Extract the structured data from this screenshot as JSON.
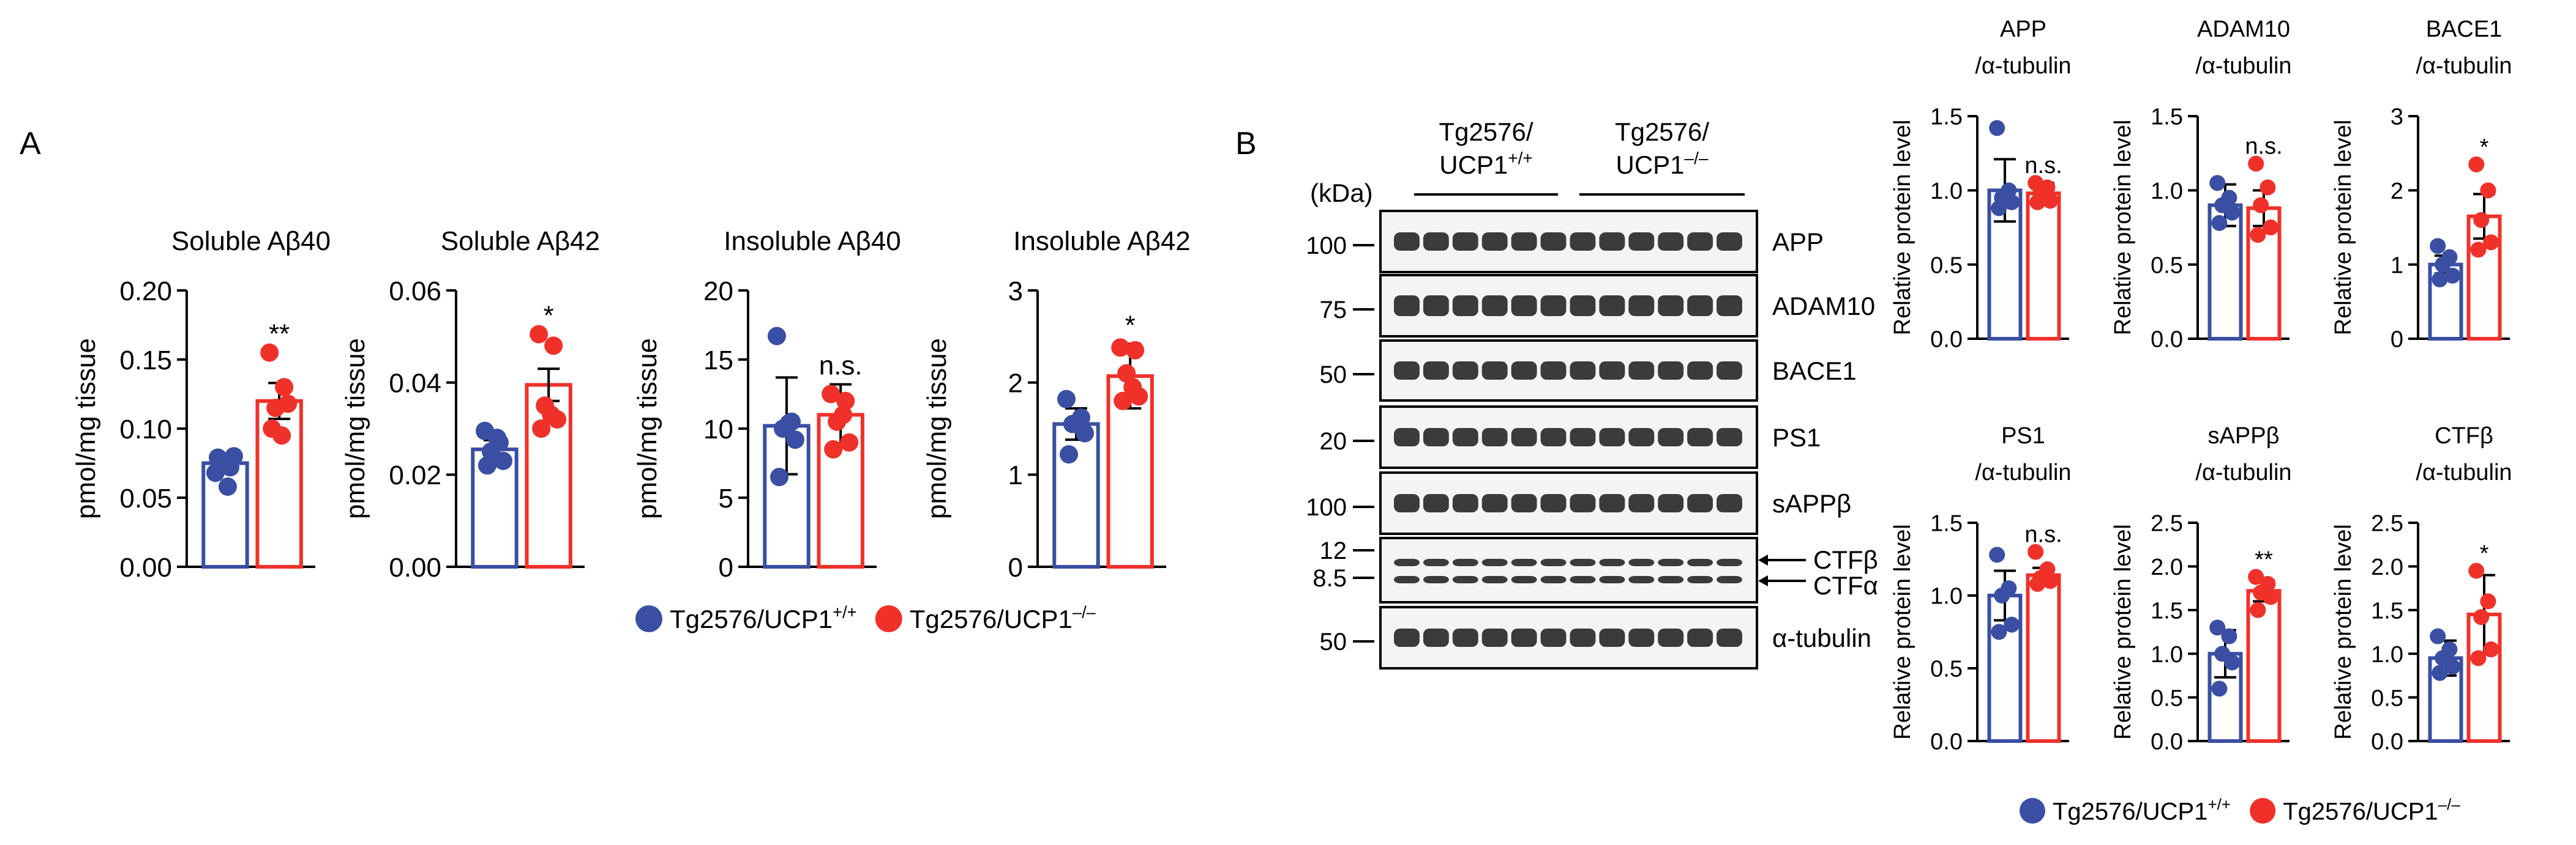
{
  "panel_labels": {
    "a": "A",
    "b": "B"
  },
  "colors": {
    "wt": "#3a4fa3",
    "ko": "#f0312a",
    "axis": "#000000"
  },
  "legend": {
    "wt_main": "Tg2576/UCP1",
    "wt_sup": "+/+",
    "ko_main": "Tg2576/UCP1",
    "ko_sup": "–/–"
  },
  "blot": {
    "kda_label": "(kDa)",
    "groups": [
      {
        "line1": "Tg2576/",
        "line2_main": "UCP1",
        "line2_sup": "+/+"
      },
      {
        "line1": "Tg2576/",
        "line2_main": "UCP1",
        "line2_sup": "–/–"
      }
    ],
    "rows": [
      {
        "marker": "100",
        "label": "APP"
      },
      {
        "marker": "75",
        "label": "ADAM10"
      },
      {
        "marker": "50",
        "label": "BACE1"
      },
      {
        "marker": "20",
        "label": "PS1"
      },
      {
        "marker": "100",
        "label": "sAPPβ"
      },
      {
        "marker": "12",
        "marker2": "8.5",
        "label": "CTFβ",
        "label2": "CTFα"
      },
      {
        "marker": "50",
        "label": "α-tubulin"
      }
    ]
  },
  "chart_data": [
    {
      "type": "bar",
      "title": "Soluble Aβ40",
      "ylabel": "pmol/mg tissue",
      "ylim": [
        0,
        0.2
      ],
      "yticks": [
        "0.00",
        "0.05",
        "0.10",
        "0.15",
        "0.20"
      ],
      "significance": "**",
      "series": [
        {
          "name": "Tg2576/UCP1+/+",
          "mean": 0.075,
          "err": 0.006,
          "points": [
            0.068,
            0.072,
            0.076,
            0.08,
            0.079,
            0.058
          ]
        },
        {
          "name": "Tg2576/UCP1–/–",
          "mean": 0.12,
          "err": 0.013,
          "points": [
            0.155,
            0.13,
            0.115,
            0.118,
            0.1,
            0.095
          ]
        }
      ]
    },
    {
      "type": "bar",
      "title": "Soluble Aβ42",
      "ylabel": "pmol/mg tissue",
      "ylim": [
        0,
        0.06
      ],
      "yticks": [
        "0.00",
        "0.02",
        "0.04",
        "0.06"
      ],
      "significance": "*",
      "series": [
        {
          "name": "Tg2576/UCP1+/+",
          "mean": 0.0255,
          "err": 0.002,
          "points": [
            0.0295,
            0.027,
            0.025,
            0.023,
            0.022,
            0.028
          ]
        },
        {
          "name": "Tg2576/UCP1–/–",
          "mean": 0.0395,
          "err": 0.0035,
          "points": [
            0.0505,
            0.048,
            0.035,
            0.032,
            0.03,
            0.033
          ]
        }
      ]
    },
    {
      "type": "bar",
      "title": "Insoluble Aβ40",
      "ylabel": "pmol/mg tissue",
      "ylim": [
        0,
        20
      ],
      "yticks": [
        "0",
        "5",
        "10",
        "15",
        "20"
      ],
      "significance": "n.s.",
      "series": [
        {
          "name": "Tg2576/UCP1+/+",
          "mean": 10.2,
          "err": 3.5,
          "points": [
            16.7,
            10.5,
            10.0,
            9.2,
            6.5,
            10.4
          ]
        },
        {
          "name": "Tg2576/UCP1–/–",
          "mean": 11.0,
          "err": 2.2,
          "points": [
            12.5,
            12.0,
            10.5,
            9.0,
            8.5,
            11.0
          ]
        }
      ]
    },
    {
      "type": "bar",
      "title": "Insoluble Aβ42",
      "ylabel": "pmol/mg tissue",
      "ylim": [
        0,
        3
      ],
      "yticks": [
        "0",
        "1",
        "2",
        "3"
      ],
      "significance": "*",
      "series": [
        {
          "name": "Tg2576/UCP1+/+",
          "mean": 1.55,
          "err": 0.17,
          "points": [
            1.82,
            1.62,
            1.55,
            1.45,
            1.22
          ]
        },
        {
          "name": "Tg2576/UCP1–/–",
          "mean": 2.07,
          "err": 0.35,
          "points": [
            2.38,
            2.35,
            2.1,
            1.85,
            1.8,
            1.95
          ]
        }
      ]
    },
    {
      "type": "bar",
      "title": "APP",
      "title2": "/α-tubulin",
      "ylabel": "Relative protein level",
      "ylim": [
        0,
        1.5
      ],
      "yticks": [
        "0.0",
        "0.5",
        "1.0",
        "1.5"
      ],
      "significance": "n.s.",
      "series": [
        {
          "name": "Tg2576/UCP1+/+",
          "mean": 1.0,
          "err": 0.21,
          "points": [
            1.42,
            1.0,
            0.95,
            0.92,
            0.88
          ]
        },
        {
          "name": "Tg2576/UCP1–/–",
          "mean": 0.98,
          "err": 0.07,
          "points": [
            1.05,
            1.02,
            0.98,
            0.93,
            0.92
          ]
        }
      ]
    },
    {
      "type": "bar",
      "title": "ADAM10",
      "title2": "/α-tubulin",
      "ylabel": "Relative protein level",
      "ylim": [
        0,
        1.5
      ],
      "yticks": [
        "0.0",
        "0.5",
        "1.0",
        "1.5"
      ],
      "significance": "n.s.",
      "series": [
        {
          "name": "Tg2576/UCP1+/+",
          "mean": 0.9,
          "err": 0.14,
          "points": [
            1.05,
            0.95,
            0.9,
            0.85,
            0.78
          ]
        },
        {
          "name": "Tg2576/UCP1–/–",
          "mean": 0.88,
          "err": 0.12,
          "points": [
            1.18,
            1.02,
            0.9,
            0.75,
            0.7
          ]
        }
      ]
    },
    {
      "type": "bar",
      "title": "BACE1",
      "title2": "/α-tubulin",
      "ylabel": "Relative protein level",
      "ylim": [
        0,
        3
      ],
      "yticks": [
        "0",
        "1",
        "2",
        "3"
      ],
      "significance": "*",
      "series": [
        {
          "name": "Tg2576/UCP1+/+",
          "mean": 1.0,
          "err": 0.12,
          "points": [
            1.25,
            1.1,
            1.0,
            0.85,
            0.8
          ]
        },
        {
          "name": "Tg2576/UCP1–/–",
          "mean": 1.65,
          "err": 0.3,
          "points": [
            2.35,
            2.0,
            1.6,
            1.3,
            1.2
          ]
        }
      ]
    },
    {
      "type": "bar",
      "title": "PS1",
      "title2": "/α-tubulin",
      "ylabel": "Relative protein level",
      "ylim": [
        0,
        1.5
      ],
      "yticks": [
        "0.0",
        "0.5",
        "1.0",
        "1.5"
      ],
      "significance": "n.s.",
      "series": [
        {
          "name": "Tg2576/UCP1+/+",
          "mean": 1.0,
          "err": 0.17,
          "points": [
            1.28,
            1.05,
            1.0,
            0.8,
            0.75
          ]
        },
        {
          "name": "Tg2576/UCP1–/–",
          "mean": 1.14,
          "err": 0.05,
          "points": [
            1.3,
            1.18,
            1.12,
            1.1,
            1.08
          ]
        }
      ]
    },
    {
      "type": "bar",
      "title": "sAPPβ",
      "title2": "/α-tubulin",
      "ylabel": "Relative protein level",
      "ylim": [
        0,
        2.5
      ],
      "yticks": [
        "0.0",
        "0.5",
        "1.0",
        "1.5",
        "2.0",
        "2.5"
      ],
      "significance": "**",
      "series": [
        {
          "name": "Tg2576/UCP1+/+",
          "mean": 1.0,
          "err": 0.27,
          "points": [
            1.3,
            1.2,
            1.0,
            0.9,
            0.6
          ]
        },
        {
          "name": "Tg2576/UCP1–/–",
          "mean": 1.72,
          "err": 0.12,
          "points": [
            1.88,
            1.8,
            1.7,
            1.65,
            1.5
          ]
        }
      ]
    },
    {
      "type": "bar",
      "title": "CTFβ",
      "title2": "/α-tubulin",
      "ylabel": "Relative protein level",
      "ylim": [
        0,
        2.5
      ],
      "yticks": [
        "0.0",
        "0.5",
        "1.0",
        "1.5",
        "2.0",
        "2.5"
      ],
      "significance": "*",
      "series": [
        {
          "name": "Tg2576/UCP1+/+",
          "mean": 0.95,
          "err": 0.2,
          "points": [
            1.2,
            1.05,
            0.95,
            0.85,
            0.78
          ]
        },
        {
          "name": "Tg2576/UCP1–/–",
          "mean": 1.45,
          "err": 0.45,
          "points": [
            1.95,
            1.6,
            1.42,
            1.05,
            0.95
          ]
        }
      ]
    }
  ]
}
